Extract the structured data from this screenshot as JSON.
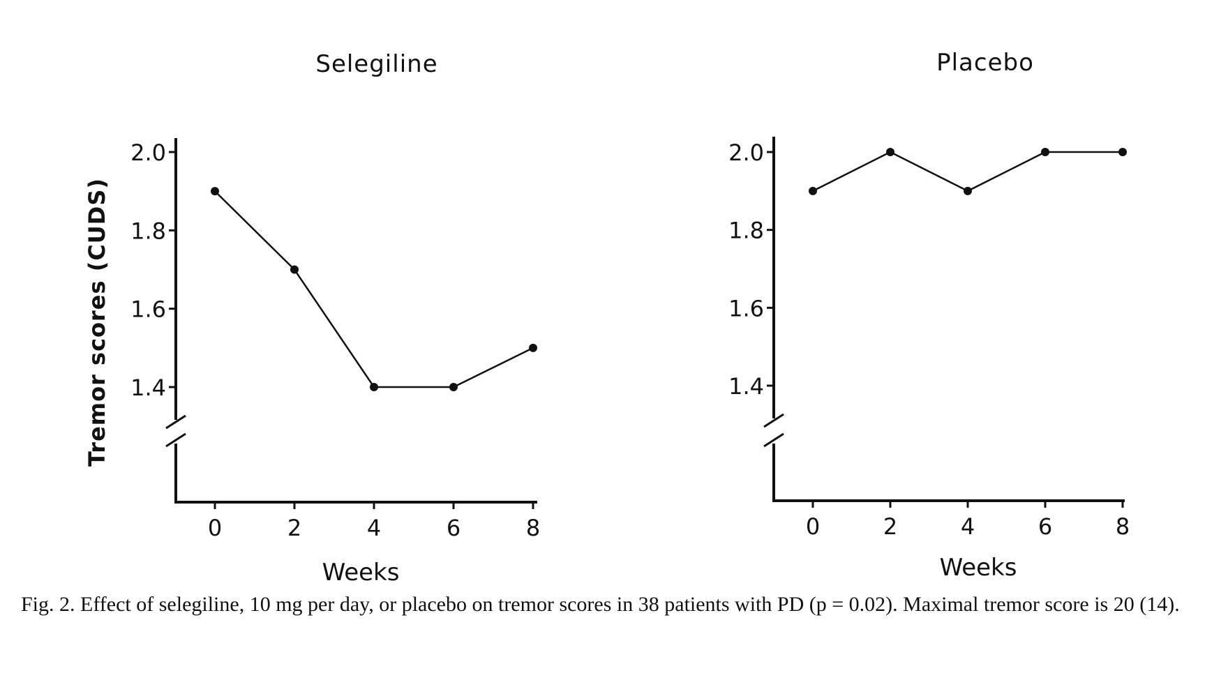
{
  "caption": "Fig. 2. Effect of selegiline, 10 mg per day, or placebo on tremor scores in 38 patients with PD (p = 0.02). Maximal tremor score is 20 (14).",
  "chart_data": [
    {
      "type": "line",
      "title": "Selegiline",
      "xlabel": "Weeks",
      "ylabel": "Tremor scores (CUDS)",
      "x": [
        0,
        2,
        4,
        6,
        8
      ],
      "y": [
        1.9,
        1.7,
        1.4,
        1.4,
        1.5
      ],
      "xticks": [
        "0",
        "2",
        "4",
        "6",
        "8"
      ],
      "yticks": [
        "1.4",
        "1.6",
        "1.8",
        "2.0"
      ],
      "ylim": [
        1.4,
        2.0
      ],
      "axis_break": true,
      "grid": false
    },
    {
      "type": "line",
      "title": "Placebo",
      "xlabel": "Weeks",
      "ylabel": "",
      "x": [
        0,
        2,
        4,
        6,
        8
      ],
      "y": [
        1.9,
        2.0,
        1.9,
        2.0,
        2.0
      ],
      "xticks": [
        "0",
        "2",
        "4",
        "6",
        "8"
      ],
      "yticks": [
        "1.4",
        "1.6",
        "1.8",
        "2.0"
      ],
      "ylim": [
        1.4,
        2.0
      ],
      "axis_break": true,
      "grid": false
    }
  ]
}
